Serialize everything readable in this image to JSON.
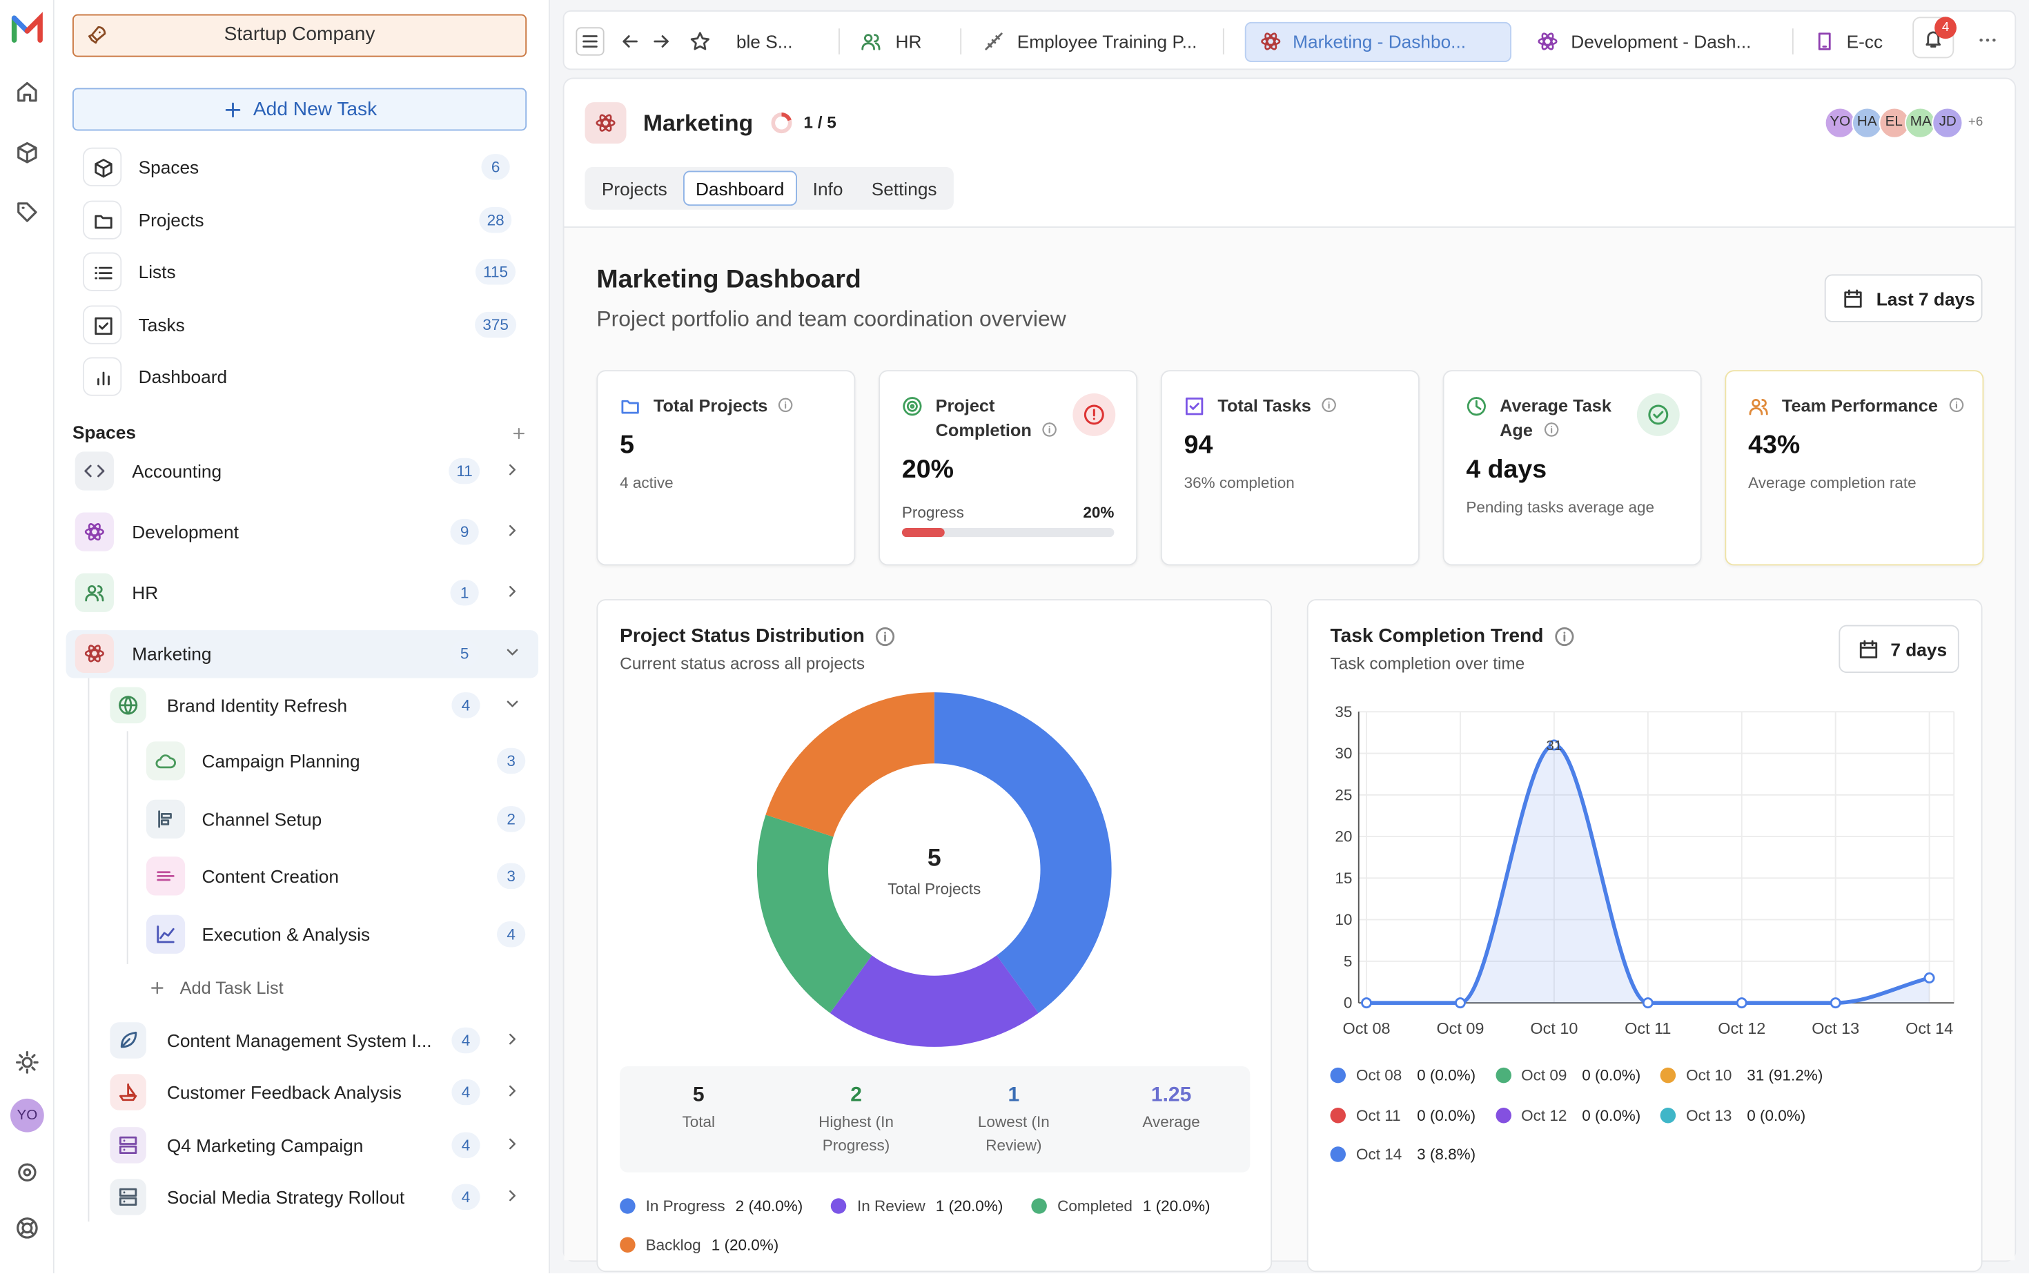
{
  "sidebar": {
    "workspace": "Startup Company",
    "add_task": "Add New Task",
    "nav": [
      {
        "label": "Spaces",
        "count": 6
      },
      {
        "label": "Projects",
        "count": 28
      },
      {
        "label": "Lists",
        "count": 115
      },
      {
        "label": "Tasks",
        "count": 375
      },
      {
        "label": "Dashboard"
      }
    ],
    "spaces_heading": "Spaces",
    "spaces": [
      {
        "label": "Accounting",
        "count": 11
      },
      {
        "label": "Development",
        "count": 9
      },
      {
        "label": "HR",
        "count": 1
      },
      {
        "label": "Marketing",
        "count": 5
      }
    ],
    "projects": [
      {
        "label": "Brand Identity Refresh",
        "count": 4,
        "lists": [
          {
            "label": "Campaign Planning",
            "count": 3
          },
          {
            "label": "Channel Setup",
            "count": 2
          },
          {
            "label": "Content Creation",
            "count": 3
          },
          {
            "label": "Execution & Analysis",
            "count": 4
          }
        ]
      },
      {
        "label": "Content Management System I...",
        "count": 4
      },
      {
        "label": "Customer Feedback Analysis",
        "count": 4
      },
      {
        "label": "Q4 Marketing Campaign",
        "count": 4
      },
      {
        "label": "Social Media Strategy Rollout",
        "count": 4
      }
    ],
    "add_task_list": "Add Task List",
    "user": "YO"
  },
  "tabs": [
    "ble S...",
    "HR",
    "Employee Training P...",
    "Marketing - Dashbo...",
    "Development - Dash...",
    "E-cc"
  ],
  "notifications": 4,
  "header": {
    "title": "Marketing",
    "progress": "1 / 5",
    "members": [
      "YO",
      "HA",
      "EL",
      "MA",
      "JD"
    ],
    "more_members": "+6",
    "tabs": [
      "Projects",
      "Dashboard",
      "Info",
      "Settings"
    ]
  },
  "dashboard": {
    "title": "Marketing Dashboard",
    "subtitle": "Project portfolio and team coordination overview",
    "range": "Last 7 days",
    "cards": [
      {
        "title": "Total Projects",
        "value": 5,
        "note": "4 active"
      },
      {
        "title": "Project Completion",
        "value": "20%",
        "progress_label": "Progress",
        "progress": {
          "value": 20,
          "label": "20%"
        }
      },
      {
        "title": "Total Tasks",
        "value": 94,
        "note": "36% completion"
      },
      {
        "title": "Average Task Age",
        "value": "4 days",
        "note": "Pending tasks average age"
      },
      {
        "title": "Team Performance",
        "value": "43%",
        "note": "Average completion rate"
      }
    ],
    "status_chart": {
      "type": "donut",
      "title": "Project Status Distribution",
      "subtitle": "Current status across all projects",
      "center_value": 5,
      "center_label": "Total Projects",
      "segments": [
        {
          "name": "In Progress",
          "value": 2,
          "value_label": "2 (40.0%)",
          "color": "#4b7fe8"
        },
        {
          "name": "In Review",
          "value": 1,
          "value_label": "1 (20.0%)",
          "color": "#7b55e6"
        },
        {
          "name": "Completed",
          "value": 1,
          "value_label": "1 (20.0%)",
          "color": "#4cb07a"
        },
        {
          "name": "Backlog",
          "value": 1,
          "value_label": "1 (20.0%)",
          "color": "#e97c35"
        }
      ],
      "stats": [
        {
          "value": 5,
          "label": "Total"
        },
        {
          "value": 2,
          "label": "Highest (In Progress)"
        },
        {
          "value": 1,
          "label": "Lowest (In Review)"
        },
        {
          "value": 1.25,
          "label": "Average"
        }
      ]
    },
    "trend_chart": {
      "type": "line",
      "title": "Task Completion Trend",
      "subtitle": "Task completion over time",
      "range": "7 days",
      "categories": [
        "Oct 08",
        "Oct 09",
        "Oct 10",
        "Oct 11",
        "Oct 12",
        "Oct 13",
        "Oct 14"
      ],
      "values": [
        0,
        0,
        31,
        0,
        0,
        0,
        3
      ],
      "value_labels": [
        "0 (0.0%)",
        "0 (0.0%)",
        "31 (91.2%)",
        "0 (0.0%)",
        "0 (0.0%)",
        "0 (0.0%)",
        "3 (8.8%)"
      ],
      "legend_colors": [
        "#4b7fe8",
        "#4cb07a",
        "#eba234",
        "#e04848",
        "#8450e0",
        "#3fb6c8",
        "#4b7fe8"
      ],
      "color": "#4b7fe8",
      "ylim": [
        0,
        35
      ],
      "yticks": [
        0,
        5,
        10,
        15,
        20,
        25,
        30,
        35
      ],
      "grid": true
    }
  }
}
